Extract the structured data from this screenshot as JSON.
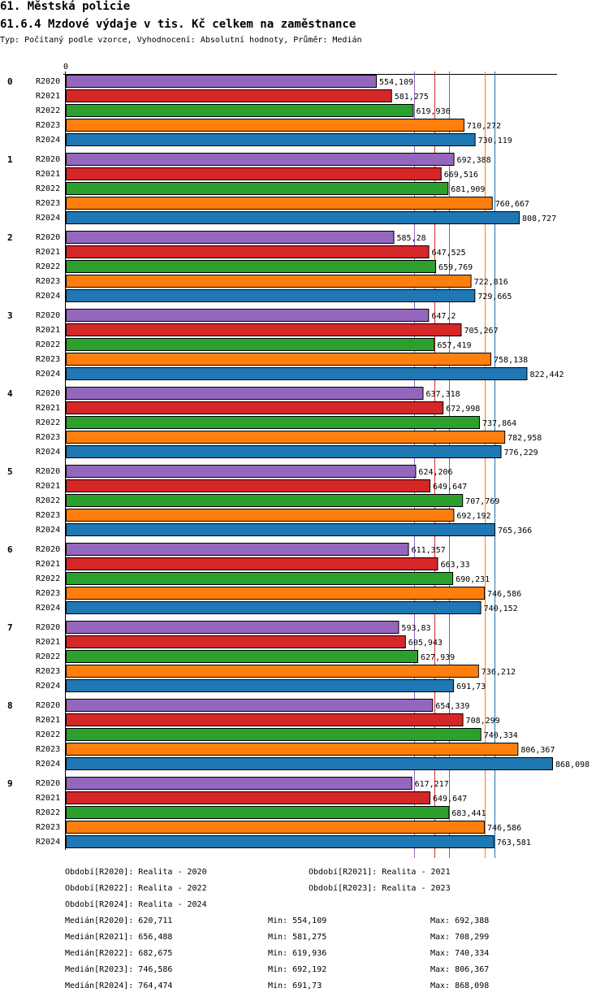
{
  "header": {
    "title": "61. Městská policie",
    "subtitle": "61.6.4 Mzdové výdaje v tis. Kč celkem na zaměstnance",
    "meta": "Typ: Počítaný podle vzorce, Vyhodnocení: Absolutní hodnoty, Průměr: Medián"
  },
  "chart_data": {
    "type": "bar",
    "orientation": "horizontal",
    "axis_zero_label": "0",
    "xlim": [
      0,
      868.098
    ],
    "categories": [
      "0",
      "1",
      "2",
      "3",
      "4",
      "5",
      "6",
      "7",
      "8",
      "9"
    ],
    "series": [
      {
        "name": "R2020",
        "color": "#9467bd",
        "values": [
          554.109,
          692.388,
          585.28,
          647.2,
          637.318,
          624.206,
          611.357,
          593.83,
          654.339,
          617.217
        ],
        "labels": [
          "554,109",
          "692,388",
          "585,28",
          "647,2",
          "637,318",
          "624,206",
          "611,357",
          "593,83",
          "654,339",
          "617,217"
        ]
      },
      {
        "name": "R2021",
        "color": "#d62728",
        "values": [
          581.275,
          669.516,
          647.525,
          705.267,
          672.998,
          649.647,
          663.33,
          605.943,
          708.299,
          649.647
        ],
        "labels": [
          "581,275",
          "669,516",
          "647,525",
          "705,267",
          "672,998",
          "649,647",
          "663,33",
          "605,943",
          "708,299",
          "649,647"
        ]
      },
      {
        "name": "R2022",
        "color": "#2ca02c",
        "values": [
          619.936,
          681.909,
          659.769,
          657.419,
          737.864,
          707.769,
          690.231,
          627.939,
          740.334,
          683.441
        ],
        "labels": [
          "619,936",
          "681,909",
          "659,769",
          "657,419",
          "737,864",
          "707,769",
          "690,231",
          "627,939",
          "740,334",
          "683,441"
        ]
      },
      {
        "name": "R2023",
        "color": "#ff7f0e",
        "values": [
          710.272,
          760.667,
          722.816,
          758.138,
          782.958,
          692.192,
          746.586,
          736.212,
          806.367,
          746.586
        ],
        "labels": [
          "710,272",
          "760,667",
          "722,816",
          "758,138",
          "782,958",
          "692,192",
          "746,586",
          "736,212",
          "806,367",
          "746,586"
        ]
      },
      {
        "name": "R2024",
        "color": "#1f77b4",
        "values": [
          730.119,
          808.727,
          729.665,
          822.442,
          776.229,
          765.366,
          740.152,
          691.73,
          868.098,
          763.581
        ],
        "labels": [
          "730,119",
          "808,727",
          "729,665",
          "822,442",
          "776,229",
          "765,366",
          "740,152",
          "691,73",
          "868,098",
          "763,581"
        ]
      }
    ],
    "median_lines": [
      {
        "series": "R2020",
        "value": 620.711,
        "color": "#9467bd"
      },
      {
        "series": "R2021",
        "value": 656.488,
        "color": "#d62728"
      },
      {
        "series": "R2022",
        "value": 682.675,
        "color": "#2ca02c"
      },
      {
        "series": "R2023",
        "value": 746.586,
        "color": "#ff7f0e"
      },
      {
        "series": "R2024",
        "value": 764.474,
        "color": "#1f77b4"
      }
    ]
  },
  "legend": {
    "periods": [
      "Období[R2020]: Realita - 2020",
      "Období[R2021]: Realita - 2021",
      "Období[R2022]: Realita - 2022",
      "Období[R2023]: Realita - 2023",
      "Období[R2024]: Realita - 2024"
    ],
    "stats": [
      {
        "median": "Medián[R2020]: 620,711",
        "min": "Min: 554,109",
        "max": "Max: 692,388"
      },
      {
        "median": "Medián[R2021]: 656,488",
        "min": "Min: 581,275",
        "max": "Max: 708,299"
      },
      {
        "median": "Medián[R2022]: 682,675",
        "min": "Min: 619,936",
        "max": "Max: 740,334"
      },
      {
        "median": "Medián[R2023]: 746,586",
        "min": "Min: 692,192",
        "max": "Max: 806,367"
      },
      {
        "median": "Medián[R2024]: 764,474",
        "min": "Min: 691,73",
        "max": "Max: 868,098"
      }
    ]
  }
}
